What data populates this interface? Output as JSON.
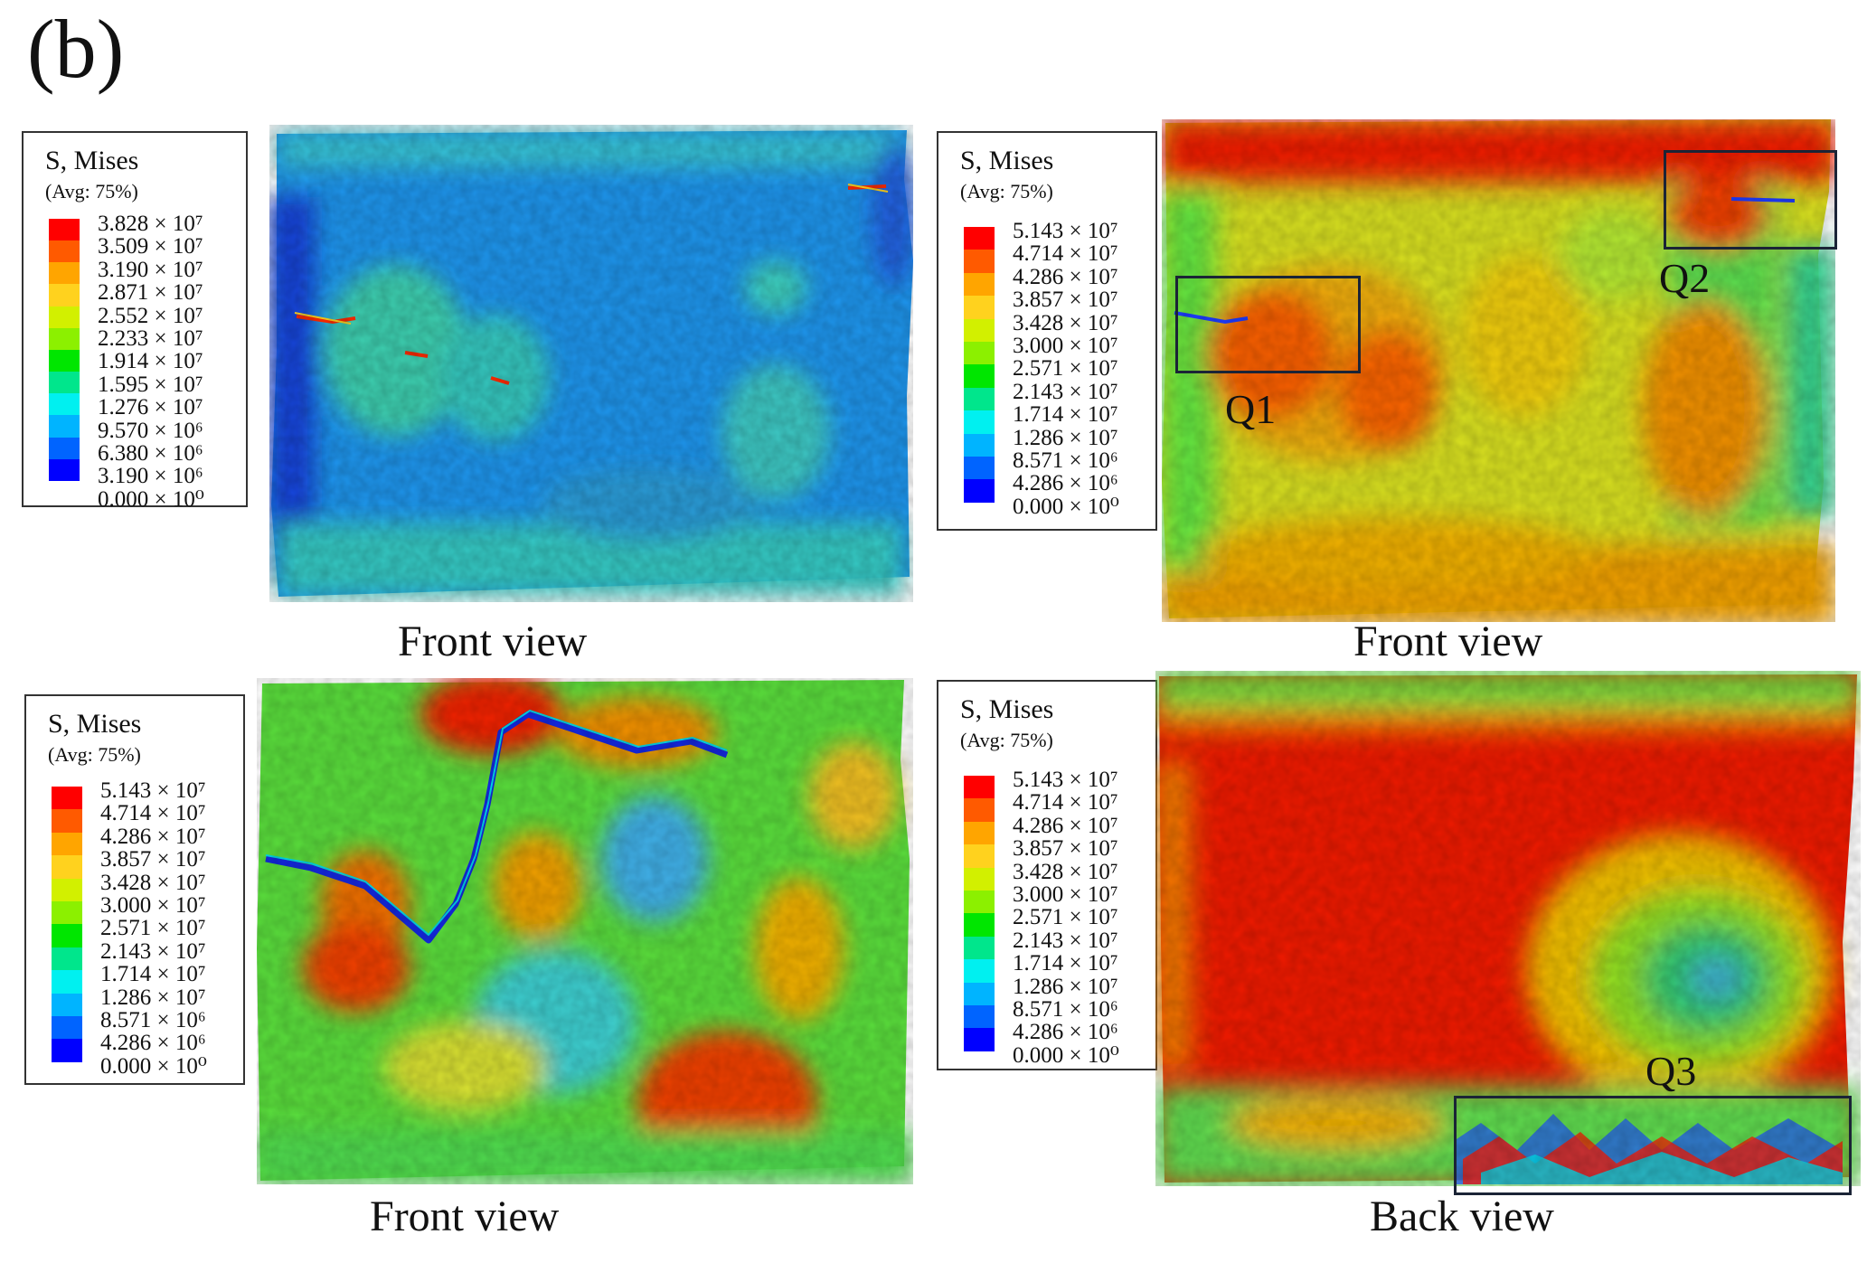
{
  "panel_label": "(b)",
  "legend_title": "S, Mises",
  "legend_avg": "(Avg: 75%)",
  "panels": [
    {
      "id": "top-left",
      "caption": "Front view",
      "legend": {
        "values": [
          "3.828 × 10⁷",
          "3.509 × 10⁷",
          "3.190 × 10⁷",
          "2.871 × 10⁷",
          "2.552 × 10⁷",
          "2.233 × 10⁷",
          "1.914 × 10⁷",
          "1.595 × 10⁷",
          "1.276 × 10⁷",
          "9.570 × 10⁶",
          "6.380 × 10⁶",
          "3.190 × 10⁶",
          "0.000 × 10⁰"
        ]
      }
    },
    {
      "id": "top-right",
      "caption": "Front view",
      "zones": [
        "Q1",
        "Q2"
      ],
      "legend": {
        "values": [
          "5.143 × 10⁷",
          "4.714 × 10⁷",
          "4.286 × 10⁷",
          "3.857 × 10⁷",
          "3.428 × 10⁷",
          "3.000 × 10⁷",
          "2.571 × 10⁷",
          "2.143 × 10⁷",
          "1.714 × 10⁷",
          "1.286 × 10⁷",
          "8.571 × 10⁶",
          "4.286 × 10⁶",
          "0.000 × 10⁰"
        ]
      }
    },
    {
      "id": "bottom-left",
      "caption": "Front view",
      "legend": {
        "values": [
          "5.143 × 10⁷",
          "4.714 × 10⁷",
          "4.286 × 10⁷",
          "3.857 × 10⁷",
          "3.428 × 10⁷",
          "3.000 × 10⁷",
          "2.571 × 10⁷",
          "2.143 × 10⁷",
          "1.714 × 10⁷",
          "1.286 × 10⁷",
          "8.571 × 10⁶",
          "4.286 × 10⁶",
          "0.000 × 10⁰"
        ]
      }
    },
    {
      "id": "bottom-right",
      "caption": "Back view",
      "zones": [
        "Q3"
      ],
      "legend": {
        "values": [
          "5.143 × 10⁷",
          "4.714 × 10⁷",
          "4.286 × 10⁷",
          "3.857 × 10⁷",
          "3.428 × 10⁷",
          "3.000 × 10⁷",
          "2.571 × 10⁷",
          "2.143 × 10⁷",
          "1.714 × 10⁷",
          "1.286 × 10⁷",
          "8.571 × 10⁶",
          "4.286 × 10⁶",
          "0.000 × 10⁰"
        ]
      }
    }
  ],
  "colormap": [
    "#ff0000",
    "#ff5a00",
    "#ffa500",
    "#ffd21e",
    "#d2f000",
    "#8cf000",
    "#00e600",
    "#00e68c",
    "#00f0f0",
    "#00b4ff",
    "#0064ff",
    "#0000ff"
  ]
}
